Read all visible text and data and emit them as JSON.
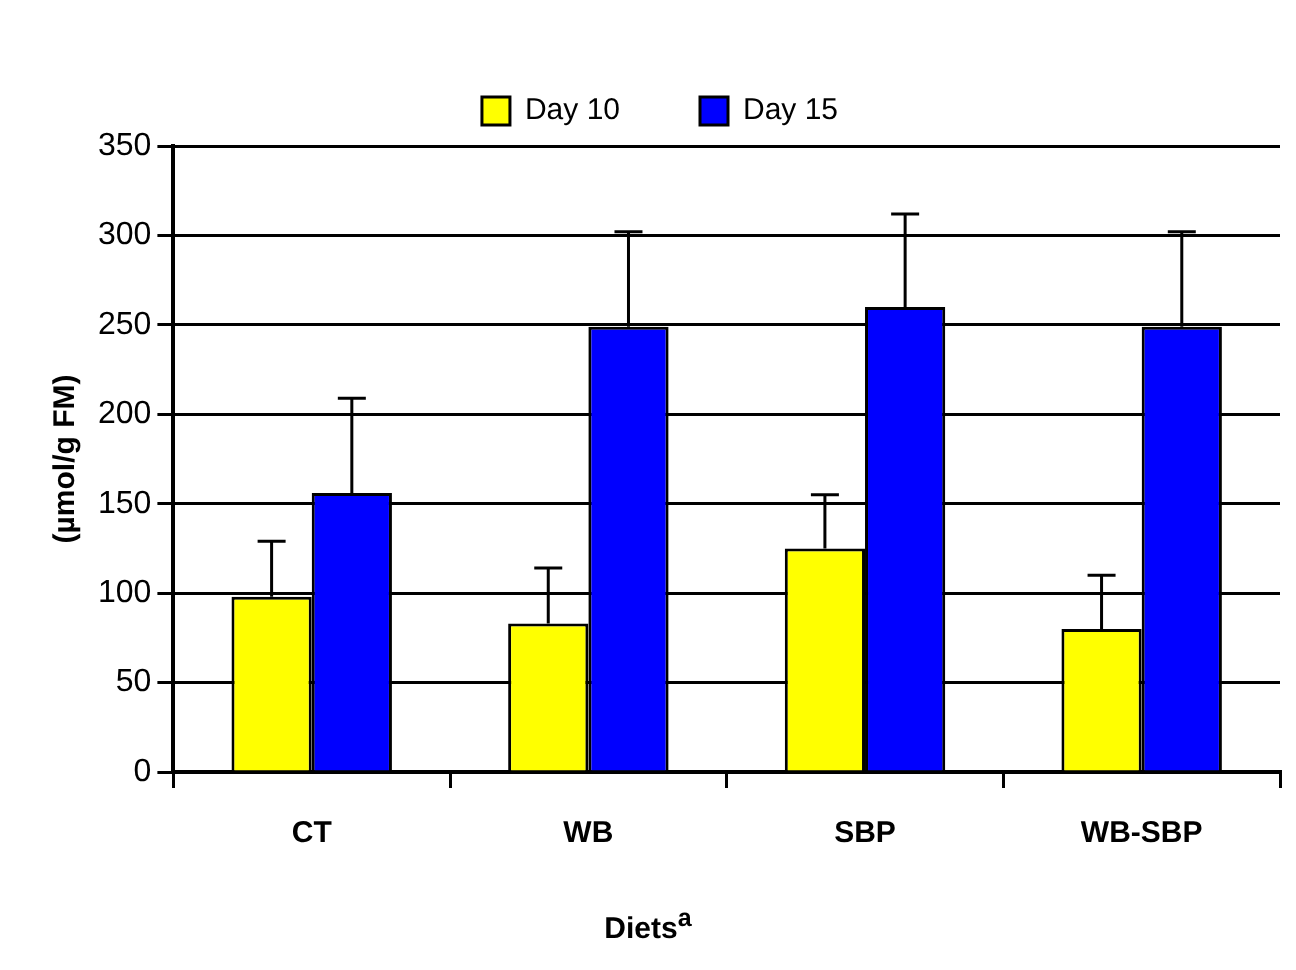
{
  "chart_data": {
    "type": "bar",
    "xlabel": "Diets$^{a}$",
    "ylabel": "(µmol/g FM)",
    "categories": [
      "CT",
      "WB",
      "SBP",
      "WB-SBP"
    ],
    "series": [
      {
        "name": "Day 10",
        "color": "#ffff00",
        "values": [
          98,
          83,
          125,
          80
        ],
        "errors": [
          [
            98,
            129
          ],
          [
            83,
            114
          ],
          [
            125,
            155
          ],
          [
            80,
            110
          ]
        ]
      },
      {
        "name": "Day 15",
        "color": "#0000ff",
        "values": [
          156,
          249,
          260,
          249
        ],
        "errors": [
          [
            156,
            209
          ],
          [
            249,
            302
          ],
          [
            260,
            312
          ],
          [
            249,
            302
          ]
        ]
      }
    ],
    "ylim": [
      0,
      350
    ],
    "yticks": [
      0,
      50,
      100,
      150,
      200,
      250,
      300,
      350
    ],
    "grid": "y",
    "legend": "top"
  }
}
